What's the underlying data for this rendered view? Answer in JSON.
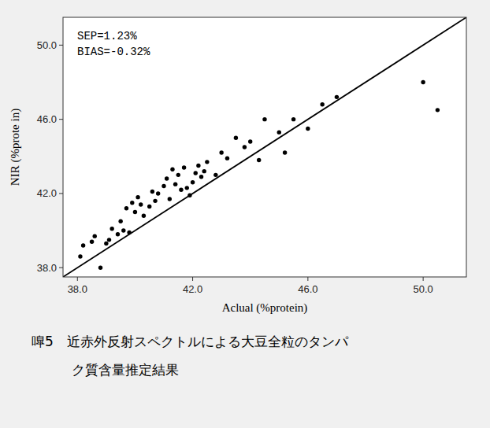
{
  "chart_data": {
    "type": "scatter",
    "xlabel": "Aclual (%protein)",
    "ylabel": "NIR (%prote in)",
    "annotations": [
      "SEP=1.23%",
      "BIAS=-0.32%"
    ],
    "caption": [
      "嘷5　近赤外反射スペクトルによる大豆全粒のタンパ",
      "　　　ク質含量推定結果"
    ],
    "series": [
      {
        "type": "scatter",
        "color": "#000000",
        "marker": "circle",
        "x": [
          38.1,
          38.2,
          38.5,
          38.6,
          38.8,
          39.0,
          39.1,
          39.2,
          39.4,
          39.5,
          39.6,
          39.7,
          39.8,
          39.9,
          40.0,
          40.1,
          40.2,
          40.3,
          40.5,
          40.6,
          40.7,
          40.8,
          41.0,
          41.1,
          41.2,
          41.3,
          41.4,
          41.5,
          41.6,
          41.7,
          41.8,
          41.9,
          42.0,
          42.1,
          42.2,
          42.3,
          42.4,
          42.5,
          42.8,
          43.0,
          43.2,
          43.5,
          43.8,
          44.0,
          44.3,
          44.5,
          45.0,
          45.2,
          45.5,
          46.0,
          46.5,
          47.0,
          50.0,
          50.5
        ],
        "values": [
          38.6,
          39.2,
          39.4,
          39.7,
          38.0,
          39.3,
          39.5,
          40.1,
          39.8,
          40.5,
          40.0,
          41.2,
          39.9,
          41.5,
          41.0,
          41.8,
          41.4,
          40.8,
          41.3,
          42.1,
          41.6,
          42.0,
          42.4,
          42.8,
          41.7,
          43.3,
          42.5,
          43.0,
          42.2,
          43.4,
          42.3,
          41.9,
          42.6,
          43.1,
          43.5,
          42.9,
          43.2,
          43.7,
          43.0,
          44.2,
          43.9,
          45.0,
          44.5,
          44.8,
          43.8,
          46.0,
          45.3,
          44.2,
          46.0,
          45.5,
          46.8,
          47.2,
          48.0,
          46.5
        ]
      },
      {
        "type": "line",
        "color": "#000000",
        "line_style": "solid",
        "x": [
          37.5,
          51.5
        ],
        "values": [
          37.5,
          51.5
        ]
      }
    ],
    "xlim": [
      37.5,
      51.5
    ],
    "ylim": [
      37.5,
      51.5
    ],
    "xticks": [
      {
        "value": 38.0,
        "label": "38.0"
      },
      {
        "value": 42.0,
        "label": "42.0"
      },
      {
        "value": 46.0,
        "label": "46.0"
      },
      {
        "value": 50.0,
        "label": "50.0"
      }
    ],
    "yticks": [
      {
        "value": 38.0,
        "label": "38.0"
      },
      {
        "value": 42.0,
        "label": "42.0"
      },
      {
        "value": 46.0,
        "label": "46.0"
      },
      {
        "value": 50.0,
        "label": "50.0"
      }
    ],
    "grid": false
  }
}
